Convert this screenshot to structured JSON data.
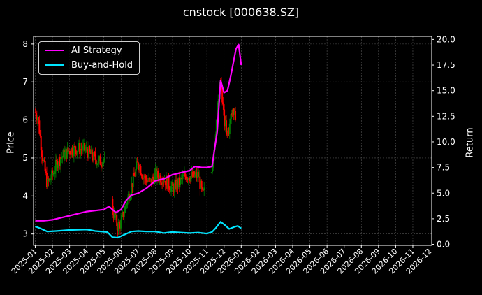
{
  "chart_data": {
    "type": "line",
    "title": "cnstock [000638.SZ]",
    "ylabel_left": "Price",
    "ylabel_right": "Return",
    "x_ticks": [
      "2025-01",
      "2025-02",
      "2025-03",
      "2025-04",
      "2025-05",
      "2025-06",
      "2025-07",
      "2025-08",
      "2025-09",
      "2025-10",
      "2025-11",
      "2025-12",
      "2026-01",
      "2026-02",
      "2026-03",
      "2026-04",
      "2026-05",
      "2026-06",
      "2026-07",
      "2026-08",
      "2026-09",
      "2026-10",
      "2026-11",
      "2026-12"
    ],
    "xlim": [
      -0.1,
      23.1
    ],
    "price_axis": {
      "ylim": [
        2.7,
        8.2
      ],
      "ticks": [
        3,
        4,
        5,
        6,
        7,
        8
      ]
    },
    "return_axis": {
      "ylim": [
        -0.1,
        20.3
      ],
      "ticks": [
        0.0,
        2.5,
        5.0,
        7.5,
        10.0,
        12.5,
        15.0,
        17.5,
        20.0
      ]
    },
    "grid": true,
    "legend_position": "top-left",
    "colors": {
      "up": "#008000",
      "down": "#ff0000",
      "ai": "#ff00ff",
      "bh": "#00e5ff"
    },
    "price_anchors": [
      [
        0.0,
        6.2
      ],
      [
        0.15,
        6.1
      ],
      [
        0.4,
        5.1
      ],
      [
        0.7,
        4.3
      ],
      [
        1.0,
        4.55
      ],
      [
        1.3,
        4.9
      ],
      [
        1.6,
        5.05
      ],
      [
        2.0,
        5.2
      ],
      [
        2.5,
        5.25
      ],
      [
        3.0,
        5.2
      ],
      [
        3.3,
        5.05
      ],
      [
        3.7,
        4.9
      ],
      [
        4.0,
        4.95
      ],
      [
        4.55,
        3.55
      ],
      [
        4.8,
        3.2
      ],
      [
        5.0,
        3.3
      ],
      [
        5.3,
        3.8
      ],
      [
        5.7,
        4.4
      ],
      [
        6.0,
        4.9
      ],
      [
        6.3,
        4.5
      ],
      [
        6.7,
        4.35
      ],
      [
        7.0,
        4.55
      ],
      [
        7.5,
        4.45
      ],
      [
        8.0,
        4.2
      ],
      [
        8.4,
        4.35
      ],
      [
        8.8,
        4.55
      ],
      [
        9.2,
        4.5
      ],
      [
        9.5,
        4.55
      ],
      [
        9.75,
        4.0
      ],
      [
        10.3,
        4.6
      ],
      [
        10.6,
        6.2
      ],
      [
        10.8,
        7.1
      ],
      [
        11.0,
        6.0
      ],
      [
        11.2,
        5.6
      ],
      [
        11.5,
        6.2
      ],
      [
        11.7,
        6.0
      ]
    ],
    "price_gaps": [
      [
        4.05,
        4.5
      ],
      [
        9.85,
        10.25
      ]
    ],
    "ai_return": [
      [
        0.0,
        2.3
      ],
      [
        0.5,
        2.3
      ],
      [
        1.0,
        2.4
      ],
      [
        1.5,
        2.6
      ],
      [
        2.0,
        2.8
      ],
      [
        2.5,
        3.0
      ],
      [
        3.0,
        3.2
      ],
      [
        3.5,
        3.3
      ],
      [
        4.0,
        3.4
      ],
      [
        4.3,
        3.7
      ],
      [
        4.7,
        3.1
      ],
      [
        5.0,
        3.4
      ],
      [
        5.3,
        4.3
      ],
      [
        5.6,
        4.8
      ],
      [
        6.0,
        5.0
      ],
      [
        6.5,
        5.5
      ],
      [
        7.0,
        6.2
      ],
      [
        7.5,
        6.4
      ],
      [
        8.0,
        6.8
      ],
      [
        8.5,
        7.0
      ],
      [
        9.0,
        7.2
      ],
      [
        9.3,
        7.6
      ],
      [
        9.7,
        7.5
      ],
      [
        10.0,
        7.5
      ],
      [
        10.3,
        7.6
      ],
      [
        10.6,
        11.0
      ],
      [
        10.8,
        16.0
      ],
      [
        11.0,
        14.8
      ],
      [
        11.2,
        15.0
      ],
      [
        11.4,
        16.5
      ],
      [
        11.7,
        19.1
      ],
      [
        11.85,
        19.5
      ],
      [
        12.0,
        17.5
      ]
    ],
    "bh_return": [
      [
        0.0,
        1.75
      ],
      [
        0.3,
        1.55
      ],
      [
        0.7,
        1.25
      ],
      [
        1.2,
        1.3
      ],
      [
        2.0,
        1.4
      ],
      [
        3.0,
        1.45
      ],
      [
        3.5,
        1.3
      ],
      [
        4.2,
        1.2
      ],
      [
        4.5,
        0.7
      ],
      [
        4.8,
        0.65
      ],
      [
        5.2,
        0.95
      ],
      [
        5.6,
        1.25
      ],
      [
        6.0,
        1.3
      ],
      [
        6.5,
        1.25
      ],
      [
        7.0,
        1.25
      ],
      [
        7.5,
        1.1
      ],
      [
        8.0,
        1.2
      ],
      [
        8.5,
        1.15
      ],
      [
        9.0,
        1.1
      ],
      [
        9.5,
        1.15
      ],
      [
        10.0,
        1.05
      ],
      [
        10.3,
        1.2
      ],
      [
        10.5,
        1.55
      ],
      [
        10.8,
        2.2
      ],
      [
        11.0,
        1.95
      ],
      [
        11.3,
        1.5
      ],
      [
        11.6,
        1.7
      ],
      [
        11.8,
        1.8
      ],
      [
        12.0,
        1.55
      ]
    ]
  },
  "legend": {
    "items": [
      {
        "label": "AI Strategy"
      },
      {
        "label": "Buy-and-Hold"
      }
    ]
  }
}
